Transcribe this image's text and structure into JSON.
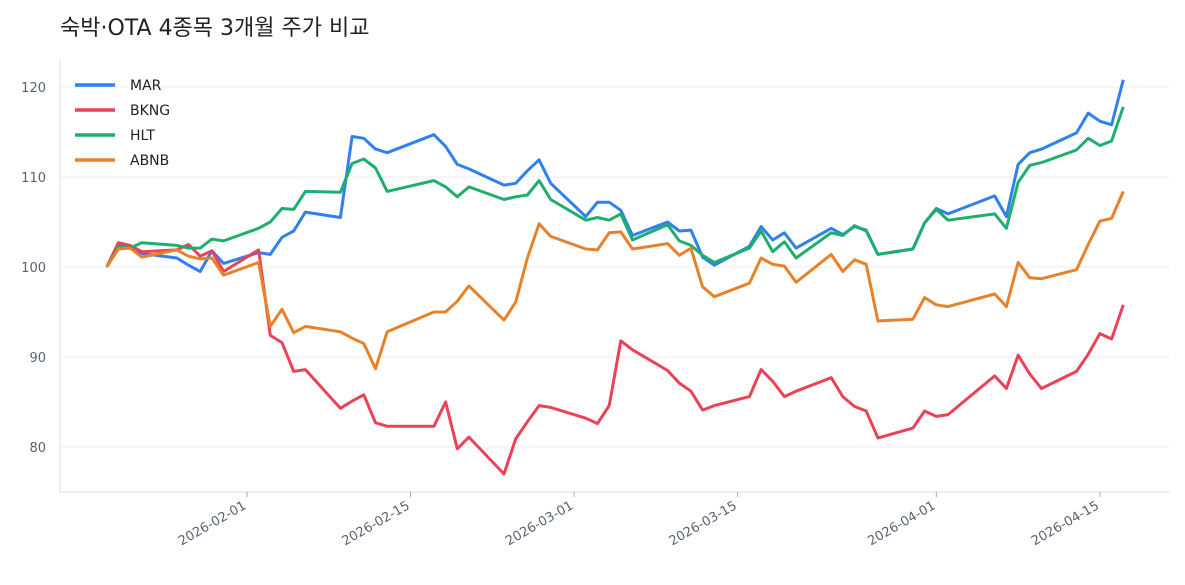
{
  "chart_data": {
    "type": "line",
    "title": "숙박·OTA 4종목 3개월 주가 비교",
    "xlabel": "",
    "ylabel": "",
    "xlim": [
      "2026-01-16",
      "2026-04-21"
    ],
    "ylim": [
      75,
      123
    ],
    "yticks": [
      80,
      90,
      100,
      110,
      120
    ],
    "xticks": [
      "2026-02-01",
      "2026-02-15",
      "2026-03-01",
      "2026-03-15",
      "2026-04-01",
      "2026-04-15"
    ],
    "grid": "horizontal",
    "legend": "top-left",
    "x": [
      "2026-01-20",
      "2026-01-21",
      "2026-01-22",
      "2026-01-23",
      "2026-01-26",
      "2026-01-27",
      "2026-01-28",
      "2026-01-29",
      "2026-01-30",
      "2026-02-02",
      "2026-02-03",
      "2026-02-04",
      "2026-02-05",
      "2026-02-06",
      "2026-02-09",
      "2026-02-10",
      "2026-02-11",
      "2026-02-12",
      "2026-02-13",
      "2026-02-17",
      "2026-02-18",
      "2026-02-19",
      "2026-02-20",
      "2026-02-23",
      "2026-02-24",
      "2026-02-25",
      "2026-02-26",
      "2026-02-27",
      "2026-03-02",
      "2026-03-03",
      "2026-03-04",
      "2026-03-05",
      "2026-03-06",
      "2026-03-09",
      "2026-03-10",
      "2026-03-11",
      "2026-03-12",
      "2026-03-13",
      "2026-03-16",
      "2026-03-17",
      "2026-03-18",
      "2026-03-19",
      "2026-03-20",
      "2026-03-23",
      "2026-03-24",
      "2026-03-25",
      "2026-03-26",
      "2026-03-27",
      "2026-03-30",
      "2026-03-31",
      "2026-04-01",
      "2026-04-02",
      "2026-04-06",
      "2026-04-07",
      "2026-04-08",
      "2026-04-09",
      "2026-04-10",
      "2026-04-13",
      "2026-04-14",
      "2026-04-15",
      "2026-04-16",
      "2026-04-17"
    ],
    "series": [
      {
        "name": "MAR",
        "color": "#2f81f0",
        "values": [
          100,
          102.5,
          102.3,
          101.5,
          101.0,
          100.2,
          99.5,
          101.8,
          100.4,
          101.6,
          101.4,
          103.3,
          104.0,
          106.1,
          105.5,
          114.5,
          114.3,
          113.1,
          112.7,
          114.7,
          113.4,
          111.4,
          110.9,
          109.1,
          109.3,
          110.7,
          111.9,
          109.3,
          105.6,
          107.2,
          107.2,
          106.3,
          103.5,
          105.0,
          104.0,
          104.1,
          101.1,
          100.2,
          102.3,
          104.5,
          103.0,
          103.8,
          102.1,
          104.3,
          103.6,
          104.5,
          104.1,
          101.4,
          102.0,
          104.9,
          106.5,
          105.9,
          107.9,
          105.6,
          111.4,
          112.7,
          113.1,
          114.9,
          117.1,
          116.2,
          115.8,
          120.8
        ]
      },
      {
        "name": "BKNG",
        "color": "#ea4256",
        "values": [
          100,
          102.7,
          102.4,
          101.7,
          101.9,
          102.5,
          101.2,
          101.8,
          99.5,
          101.9,
          92.4,
          91.6,
          88.4,
          88.6,
          84.3,
          85.1,
          85.8,
          82.7,
          82.3,
          82.3,
          85.0,
          79.8,
          81.1,
          77.0,
          80.9,
          82.8,
          84.6,
          84.4,
          83.2,
          82.6,
          84.6,
          91.8,
          90.8,
          88.5,
          87.1,
          86.2,
          84.1,
          84.6,
          85.6,
          88.6,
          87.3,
          85.6,
          86.2,
          87.7,
          85.6,
          84.5,
          84.0,
          81.0,
          82.1,
          84.0,
          83.4,
          83.6,
          87.9,
          86.5,
          90.2,
          88.1,
          86.5,
          88.4,
          90.3,
          92.6,
          92.0,
          95.8
        ]
      },
      {
        "name": "HLT",
        "color": "#1fae6e",
        "values": [
          100,
          102.2,
          102.1,
          102.7,
          102.4,
          102.1,
          102.1,
          103.1,
          102.9,
          104.3,
          105.0,
          106.5,
          106.4,
          108.4,
          108.3,
          111.5,
          112.0,
          111.0,
          108.4,
          109.6,
          108.9,
          107.8,
          108.9,
          107.5,
          107.8,
          108.0,
          109.6,
          107.5,
          105.2,
          105.5,
          105.2,
          105.9,
          103.0,
          104.7,
          102.9,
          102.4,
          101.3,
          100.5,
          102.1,
          104.0,
          101.7,
          102.8,
          101.0,
          103.8,
          103.5,
          104.6,
          104.0,
          101.4,
          102.0,
          104.9,
          106.4,
          105.2,
          105.9,
          104.3,
          109.4,
          111.3,
          111.6,
          113.0,
          114.3,
          113.5,
          114.0,
          117.8
        ]
      },
      {
        "name": "ABNB",
        "color": "#e8822a",
        "values": [
          100,
          102.0,
          102.1,
          101.1,
          101.9,
          101.2,
          100.9,
          101.0,
          99.1,
          100.5,
          93.4,
          95.3,
          92.7,
          93.4,
          92.8,
          92.1,
          91.5,
          88.7,
          92.8,
          95.0,
          95.0,
          96.2,
          97.9,
          94.1,
          96.1,
          101.0,
          104.8,
          103.4,
          102.0,
          101.9,
          103.8,
          103.9,
          102.0,
          102.6,
          101.3,
          102.1,
          97.8,
          96.7,
          98.2,
          101.0,
          100.3,
          100.1,
          98.3,
          101.4,
          99.5,
          100.8,
          100.3,
          94.0,
          94.2,
          96.6,
          95.8,
          95.6,
          97.0,
          95.6,
          100.5,
          98.8,
          98.7,
          99.7,
          102.5,
          105.1,
          105.4,
          108.4
        ]
      }
    ]
  }
}
